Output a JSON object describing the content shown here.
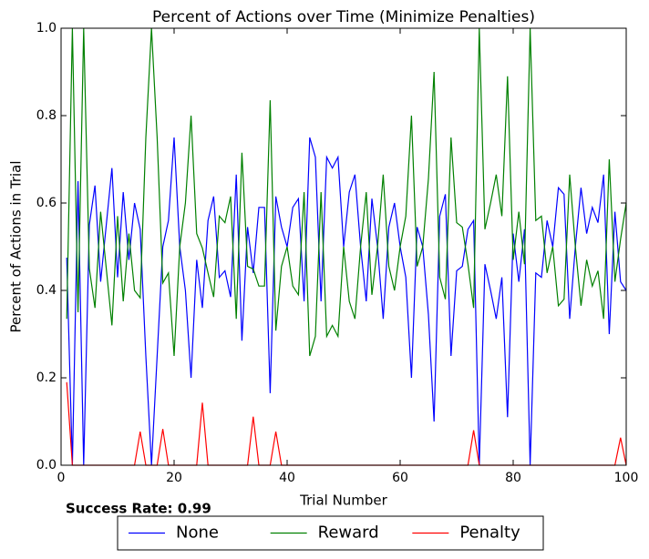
{
  "chart_data": {
    "type": "line",
    "title": "Percent of Actions over Time (Minimize Penalties)",
    "xlabel": "Trial Number",
    "ylabel": "Percent of Actions in Trial",
    "annotation": "Success Rate: 0.99",
    "x": [
      1,
      2,
      3,
      4,
      5,
      6,
      7,
      8,
      9,
      10,
      11,
      12,
      13,
      14,
      15,
      16,
      17,
      18,
      19,
      20,
      21,
      22,
      23,
      24,
      25,
      26,
      27,
      28,
      29,
      30,
      31,
      32,
      33,
      34,
      35,
      36,
      37,
      38,
      39,
      40,
      41,
      42,
      43,
      44,
      45,
      46,
      47,
      48,
      49,
      50,
      51,
      52,
      53,
      54,
      55,
      56,
      57,
      58,
      59,
      60,
      61,
      62,
      63,
      64,
      65,
      66,
      67,
      68,
      69,
      70,
      71,
      72,
      73,
      74,
      75,
      76,
      77,
      78,
      79,
      80,
      81,
      82,
      83,
      84,
      85,
      86,
      87,
      88,
      89,
      90,
      91,
      92,
      93,
      94,
      95,
      96,
      97,
      98,
      99,
      100
    ],
    "series": [
      {
        "name": "None",
        "color": "#0000ff",
        "values": [
          0.475,
          0,
          0.65,
          0,
          0.55,
          0.64,
          0.42,
          0.55,
          0.68,
          0.43,
          0.625,
          0.47,
          0.6,
          0.54,
          0.25,
          0,
          0.25,
          0.5,
          0.56,
          0.75,
          0.5,
          0.4,
          0.2,
          0.47,
          0.36,
          0.56,
          0.615,
          0.43,
          0.445,
          0.385,
          0.665,
          0.285,
          0.545,
          0.44,
          0.59,
          0.59,
          0.165,
          0.615,
          0.545,
          0.5,
          0.59,
          0.61,
          0.375,
          0.75,
          0.705,
          0.375,
          0.705,
          0.68,
          0.705,
          0.5,
          0.625,
          0.665,
          0.5,
          0.375,
          0.61,
          0.5,
          0.335,
          0.545,
          0.6,
          0.5,
          0.43,
          0.2,
          0.545,
          0.5,
          0.345,
          0.1,
          0.57,
          0.62,
          0.25,
          0.445,
          0.455,
          0.54,
          0.56,
          0,
          0.46,
          0.4,
          0.335,
          0.43,
          0.11,
          0.53,
          0.42,
          0.54,
          0,
          0.44,
          0.43,
          0.56,
          0.5,
          0.635,
          0.62,
          0.335,
          0.5,
          0.635,
          0.53,
          0.59,
          0.555,
          0.665,
          0.3,
          0.58,
          0.42,
          0.4
        ]
      },
      {
        "name": "Reward",
        "color": "#008000",
        "values": [
          0.335,
          1,
          0.35,
          1,
          0.45,
          0.36,
          0.58,
          0.45,
          0.32,
          0.57,
          0.375,
          0.53,
          0.4,
          0.383,
          0.75,
          1,
          0.75,
          0.417,
          0.44,
          0.25,
          0.5,
          0.6,
          0.8,
          0.53,
          0.497,
          0.44,
          0.385,
          0.57,
          0.555,
          0.615,
          0.335,
          0.715,
          0.455,
          0.449,
          0.41,
          0.41,
          0.835,
          0.308,
          0.455,
          0.5,
          0.41,
          0.39,
          0.625,
          0.25,
          0.295,
          0.625,
          0.295,
          0.32,
          0.295,
          0.5,
          0.375,
          0.335,
          0.5,
          0.625,
          0.39,
          0.5,
          0.665,
          0.455,
          0.4,
          0.5,
          0.57,
          0.8,
          0.455,
          0.5,
          0.655,
          0.9,
          0.43,
          0.38,
          0.75,
          0.555,
          0.545,
          0.46,
          0.36,
          1,
          0.54,
          0.6,
          0.665,
          0.57,
          0.89,
          0.47,
          0.58,
          0.46,
          1,
          0.56,
          0.57,
          0.44,
          0.5,
          0.365,
          0.38,
          0.665,
          0.5,
          0.365,
          0.47,
          0.41,
          0.445,
          0.335,
          0.7,
          0.42,
          0.517,
          0.6
        ]
      },
      {
        "name": "Penalty",
        "color": "#ff0000",
        "values": [
          0.19,
          0,
          0,
          0,
          0,
          0,
          0,
          0,
          0,
          0,
          0,
          0,
          0,
          0.077,
          0,
          0,
          0,
          0.083,
          0,
          0,
          0,
          0,
          0,
          0,
          0.143,
          0,
          0,
          0,
          0,
          0,
          0,
          0,
          0,
          0.111,
          0,
          0,
          0,
          0.077,
          0,
          0,
          0,
          0,
          0,
          0,
          0,
          0,
          0,
          0,
          0,
          0,
          0,
          0,
          0,
          0,
          0,
          0,
          0,
          0,
          0,
          0,
          0,
          0,
          0,
          0,
          0,
          0,
          0,
          0,
          0,
          0,
          0,
          0,
          0.08,
          0,
          0,
          0,
          0,
          0,
          0,
          0,
          0,
          0,
          0,
          0,
          0,
          0,
          0,
          0,
          0,
          0,
          0,
          0,
          0,
          0,
          0,
          0,
          0,
          0,
          0.063,
          0
        ]
      }
    ],
    "xlim": [
      0,
      100
    ],
    "xticks": [
      0,
      20,
      40,
      60,
      80,
      100
    ],
    "ylim": [
      0,
      1
    ],
    "yticks": [
      {
        "value": 0,
        "label": "0.0"
      },
      0.2,
      0.4,
      0.6,
      0.8,
      {
        "value": 1,
        "label": "1.0"
      }
    ],
    "grid": false,
    "legend": "bottom"
  }
}
